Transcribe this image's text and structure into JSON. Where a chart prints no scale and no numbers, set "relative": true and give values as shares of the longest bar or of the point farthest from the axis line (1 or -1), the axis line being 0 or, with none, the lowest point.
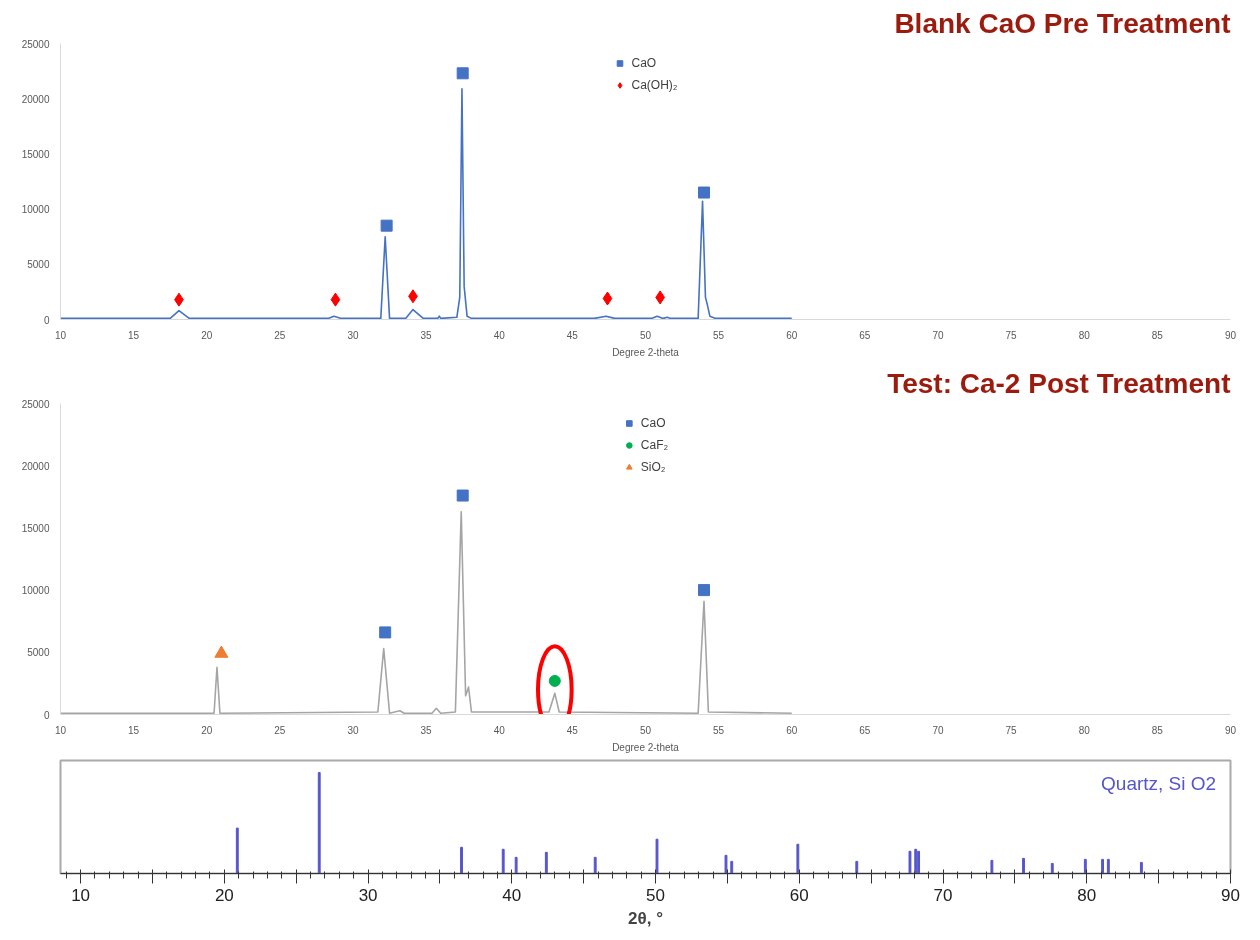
{
  "chart_data": [
    {
      "type": "line",
      "title": "Blank CaO Pre Treatment",
      "xlabel": "Degree 2-theta",
      "xlim": [
        10,
        90
      ],
      "xticks": [
        10,
        15,
        20,
        25,
        30,
        35,
        40,
        45,
        50,
        55,
        60,
        65,
        70,
        75,
        80,
        85,
        90
      ],
      "ylim": [
        0,
        25000
      ],
      "yticks": [
        0,
        5000,
        10000,
        15000,
        20000,
        25000
      ],
      "grid": false,
      "legend": "top",
      "series": [
        {
          "type": "line",
          "color": "#4472c4",
          "x": [
            10,
            17.5,
            18.1,
            18.8,
            28.3,
            28.7,
            29.2,
            31.9,
            32.2,
            32.5,
            33.6,
            34.1,
            34.8,
            35.8,
            35.9,
            36.0,
            37.1,
            37.3,
            37.45,
            37.6,
            37.8,
            38.1,
            46.5,
            47.3,
            47.9,
            50.4,
            50.8,
            51.2,
            51.5,
            51.7,
            53.6,
            53.9,
            54.1,
            54.2,
            54.4,
            54.8,
            60
          ],
          "values": [
            100,
            100,
            800,
            100,
            100,
            300,
            100,
            100,
            7500,
            100,
            100,
            900,
            100,
            100,
            300,
            100,
            200,
            2000,
            20900,
            3000,
            300,
            100,
            100,
            300,
            100,
            100,
            300,
            100,
            200,
            100,
            100,
            10700,
            2000,
            1500,
            300,
            100,
            100
          ]
        },
        {
          "type": "scatter",
          "name": "CaO",
          "marker": "square",
          "color": "#4472c4",
          "x": [
            32.3,
            37.5,
            54.0
          ],
          "values": [
            8500,
            22300,
            11500
          ]
        },
        {
          "type": "scatter",
          "name": "Ca(OH)₂",
          "marker": "diamond",
          "color": "#ff0000",
          "x": [
            18.1,
            28.8,
            34.1,
            47.4,
            51.0
          ],
          "values": [
            1800,
            1800,
            2100,
            1900,
            2000
          ]
        }
      ]
    },
    {
      "type": "line",
      "title": "Test: Ca-2 Post Treatment",
      "xlabel": "Degree 2-theta",
      "xlim": [
        10,
        90
      ],
      "xticks": [
        10,
        15,
        20,
        25,
        30,
        35,
        40,
        45,
        50,
        55,
        60,
        65,
        70,
        75,
        80,
        85,
        90
      ],
      "ylim": [
        0,
        25000
      ],
      "yticks": [
        0,
        5000,
        10000,
        15000,
        20000,
        25000
      ],
      "grid": false,
      "legend": "top",
      "series": [
        {
          "type": "line",
          "color": "#a5a5a5",
          "x": [
            10,
            20.5,
            20.7,
            20.9,
            31.7,
            32.1,
            32.5,
            33.2,
            33.5,
            35.4,
            35.7,
            36.0,
            37.0,
            37.4,
            37.7,
            37.9,
            38.1,
            43.4,
            43.8,
            44.1,
            53.6,
            54.0,
            54.3,
            60
          ],
          "values": [
            100,
            100,
            3800,
            100,
            200,
            5300,
            100,
            300,
            100,
            100,
            500,
            100,
            200,
            16300,
            1500,
            2200,
            200,
            200,
            1700,
            200,
            100,
            9100,
            200,
            100
          ]
        },
        {
          "type": "scatter",
          "name": "CaO",
          "marker": "square",
          "color": "#4472c4",
          "x": [
            32.2,
            37.5,
            54.0
          ],
          "values": [
            6600,
            17600,
            10000
          ]
        },
        {
          "type": "scatter",
          "name": "CaF₂",
          "marker": "circle",
          "color": "#00b050",
          "x": [
            43.8
          ],
          "values": [
            2700
          ]
        },
        {
          "type": "scatter",
          "name": "SiO₂",
          "marker": "triangle",
          "color": "#ed7d31",
          "x": [
            21.0
          ],
          "values": [
            4900
          ]
        }
      ]
    },
    {
      "type": "bar",
      "relative": true,
      "xlabel": "2θ, °",
      "xlim": [
        8.6,
        90
      ],
      "xticks": [
        10,
        {
          "value": 15,
          "label": null
        },
        20,
        {
          "value": 25,
          "label": null
        },
        30,
        {
          "value": 35,
          "label": null
        },
        40,
        {
          "value": 45,
          "label": null
        },
        50,
        {
          "value": 55,
          "label": null
        },
        60,
        {
          "value": 65,
          "label": null
        },
        70,
        {
          "value": 75,
          "label": null
        },
        80,
        {
          "value": 85,
          "label": null
        },
        90
      ],
      "tick_labels": "x",
      "grid": false,
      "legend": "top right",
      "series": [
        {
          "name": "Quartz, Si O2",
          "color": "#5555cc",
          "x": [
            20.9,
            26.6,
            36.5,
            39.4,
            40.3,
            42.4,
            45.8,
            50.1,
            54.9,
            55.3,
            59.9,
            64.0,
            67.7,
            68.1,
            68.3,
            73.4,
            75.6,
            77.6,
            79.9,
            81.1,
            81.5,
            83.8
          ],
          "values": [
            0.45,
            1,
            0.26,
            0.24,
            0.16,
            0.21,
            0.16,
            0.34,
            0.18,
            0.12,
            0.29,
            0.12,
            0.22,
            0.24,
            0.22,
            0.13,
            0.15,
            0.1,
            0.14,
            0.14,
            0.14,
            0.11
          ]
        }
      ]
    }
  ]
}
